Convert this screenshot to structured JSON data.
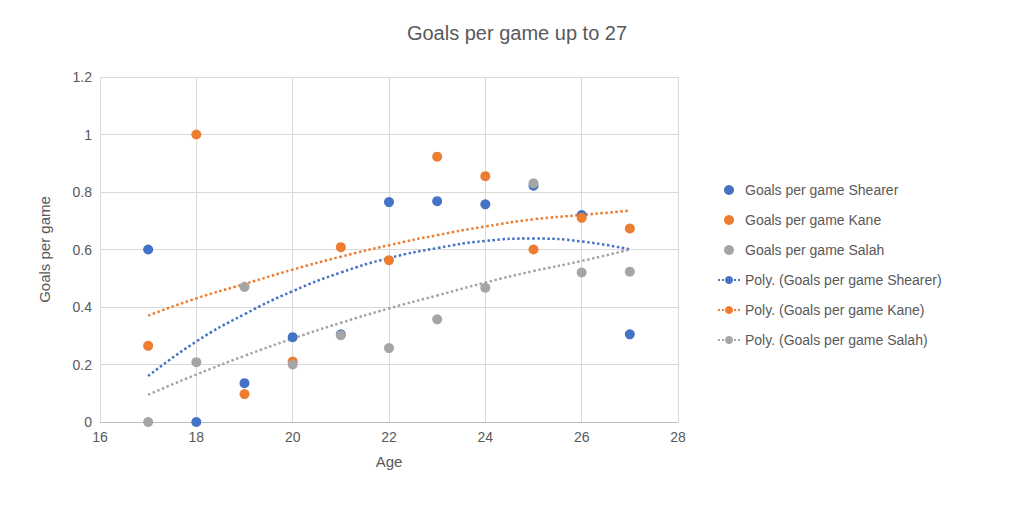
{
  "chart_data": {
    "type": "scatter",
    "title": "Goals per game up to 27",
    "x_label": "Age",
    "y_label": "Goals per game",
    "x": [
      17,
      18,
      19,
      20,
      21,
      22,
      23,
      24,
      25,
      26,
      27
    ],
    "xlim": [
      16,
      28
    ],
    "xticks": [
      16,
      18,
      20,
      22,
      24,
      26,
      28
    ],
    "ylim": [
      0,
      1.2
    ],
    "yticks": [
      0,
      0.2,
      0.4,
      0.6,
      0.8,
      1,
      1.2
    ],
    "grid": true,
    "legend": "right",
    "series": [
      {
        "name": "Goals per game Shearer",
        "type": "scatter",
        "marker": "circle",
        "color": "#4472C4",
        "values": [
          0.6,
          0,
          0.135,
          0.295,
          0.305,
          0.765,
          0.768,
          0.757,
          0.822,
          0.72,
          0.305
        ]
      },
      {
        "name": "Goals per game Kane",
        "type": "scatter",
        "marker": "circle",
        "color": "#ED7D31",
        "values": [
          0.265,
          1,
          0.097,
          0.21,
          0.608,
          0.563,
          0.923,
          0.855,
          0.6,
          0.71,
          0.673
        ]
      },
      {
        "name": "Goals per game Salah",
        "type": "scatter",
        "marker": "circle",
        "color": "#A5A5A5",
        "values": [
          0,
          0.208,
          0.47,
          0.2,
          0.302,
          0.257,
          0.357,
          0.467,
          0.83,
          0.52,
          0.523
        ]
      },
      {
        "name": "Poly. (Goals per game Shearer)",
        "type": "line",
        "line_style": "dotted",
        "color": "#4472C4",
        "values": [
          0.16,
          0.28,
          0.375,
          0.455,
          0.52,
          0.57,
          0.605,
          0.63,
          0.638,
          0.628,
          0.6
        ]
      },
      {
        "name": "Poly. (Goals per game Kane)",
        "type": "line",
        "line_style": "dotted",
        "color": "#ED7D31",
        "values": [
          0.37,
          0.43,
          0.48,
          0.53,
          0.575,
          0.615,
          0.65,
          0.68,
          0.705,
          0.72,
          0.735
        ]
      },
      {
        "name": "Poly. (Goals per game Salah)",
        "type": "line",
        "line_style": "dotted",
        "color": "#A5A5A5",
        "values": [
          0.095,
          0.165,
          0.23,
          0.29,
          0.345,
          0.395,
          0.44,
          0.485,
          0.525,
          0.56,
          0.6
        ]
      }
    ]
  }
}
